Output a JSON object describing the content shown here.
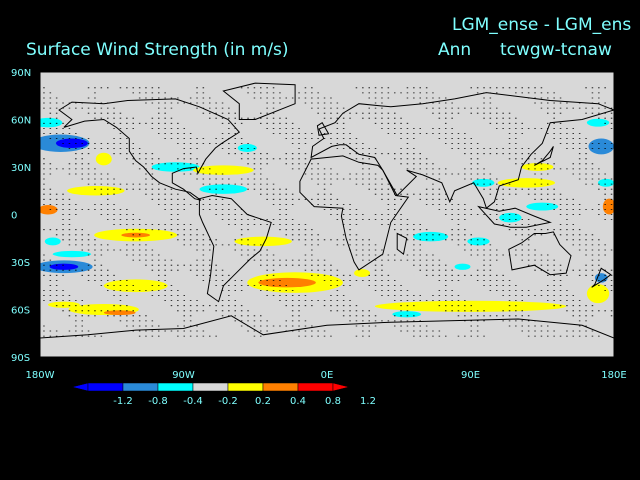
{
  "header": {
    "title": "Surface Wind Strength (in m/s)",
    "experiment": "LGM_ense - LGM_ens",
    "season": "Ann",
    "variable": "tcwgw-tcnaw"
  },
  "colors": {
    "background": "#000000",
    "text": "#7fffff",
    "ocean_land": "#d8d8d8",
    "coast": "#000000"
  },
  "chart_data": {
    "type": "heatmap",
    "title": "Surface Wind Strength (in m/s)",
    "xlabel": "",
    "ylabel": "",
    "xlim": [
      -180,
      180
    ],
    "ylim": [
      -90,
      90
    ],
    "x_ticks": [
      {
        "value": -180,
        "label": "180W"
      },
      {
        "value": -90,
        "label": "90W"
      },
      {
        "value": 0,
        "label": "0E"
      },
      {
        "value": 90,
        "label": "90E"
      },
      {
        "value": 180,
        "label": "180E"
      }
    ],
    "y_ticks": [
      {
        "value": 90,
        "label": "90N"
      },
      {
        "value": 60,
        "label": "60N"
      },
      {
        "value": 30,
        "label": "30N"
      },
      {
        "value": 0,
        "label": "0"
      },
      {
        "value": -30,
        "label": "30S"
      },
      {
        "value": -60,
        "label": "60S"
      },
      {
        "value": -90,
        "label": "90S"
      }
    ],
    "colorbar": {
      "levels": [
        "-1.2",
        "-0.8",
        "-0.4",
        "-0.2",
        "0.2",
        "0.4",
        "0.8",
        "1.2"
      ],
      "colors": [
        "#0000ff",
        "#0000ff",
        "#2a8ad8",
        "#00ffff",
        "#d8d8d8",
        "#ffff00",
        "#ff8000",
        "#ff0000",
        "#ff0000"
      ]
    },
    "anomaly_regions": [
      {
        "lon": -167,
        "lat": 45,
        "w": 36,
        "h": 11,
        "color": "#2a8ad8"
      },
      {
        "lon": -160,
        "lat": 45,
        "w": 20,
        "h": 6,
        "color": "#0000ff"
      },
      {
        "lon": -175,
        "lat": 58,
        "w": 18,
        "h": 6,
        "color": "#00ffff"
      },
      {
        "lon": -140,
        "lat": 35,
        "w": 10,
        "h": 8,
        "color": "#ffff00"
      },
      {
        "lon": -95,
        "lat": 30,
        "w": 30,
        "h": 6,
        "color": "#00ffff"
      },
      {
        "lon": -65,
        "lat": 28,
        "w": 38,
        "h": 6,
        "color": "#ffff00"
      },
      {
        "lon": -50,
        "lat": 42,
        "w": 12,
        "h": 5,
        "color": "#00ffff"
      },
      {
        "lon": -145,
        "lat": 15,
        "w": 36,
        "h": 6,
        "color": "#ffff00"
      },
      {
        "lon": -65,
        "lat": 16,
        "w": 30,
        "h": 6,
        "color": "#00ffff"
      },
      {
        "lon": -175,
        "lat": 3,
        "w": 12,
        "h": 6,
        "color": "#ff8000"
      },
      {
        "lon": -172,
        "lat": -17,
        "w": 10,
        "h": 5,
        "color": "#00ffff"
      },
      {
        "lon": -120,
        "lat": -13,
        "w": 52,
        "h": 8,
        "color": "#ffff00"
      },
      {
        "lon": -120,
        "lat": -13,
        "w": 18,
        "h": 3,
        "color": "#ff8000"
      },
      {
        "lon": -165,
        "lat": -33,
        "w": 36,
        "h": 8,
        "color": "#2a8ad8"
      },
      {
        "lon": -165,
        "lat": -33,
        "w": 18,
        "h": 4,
        "color": "#0000ff"
      },
      {
        "lon": -160,
        "lat": -25,
        "w": 24,
        "h": 4,
        "color": "#00ffff"
      },
      {
        "lon": -120,
        "lat": -45,
        "w": 40,
        "h": 8,
        "color": "#ffff00"
      },
      {
        "lon": -140,
        "lat": -60,
        "w": 44,
        "h": 7,
        "color": "#ffff00"
      },
      {
        "lon": -130,
        "lat": -62,
        "w": 20,
        "h": 3,
        "color": "#ff8000"
      },
      {
        "lon": -165,
        "lat": -57,
        "w": 20,
        "h": 4,
        "color": "#ffff00"
      },
      {
        "lon": -40,
        "lat": -17,
        "w": 36,
        "h": 6,
        "color": "#ffff00"
      },
      {
        "lon": -20,
        "lat": -43,
        "w": 60,
        "h": 13,
        "color": "#ffff00"
      },
      {
        "lon": -25,
        "lat": -43,
        "w": 36,
        "h": 6,
        "color": "#ff8000"
      },
      {
        "lon": 22,
        "lat": -37,
        "w": 10,
        "h": 5,
        "color": "#ffff00"
      },
      {
        "lon": 50,
        "lat": -63,
        "w": 18,
        "h": 4,
        "color": "#00ffff"
      },
      {
        "lon": 90,
        "lat": -58,
        "w": 120,
        "h": 7,
        "color": "#ffff00"
      },
      {
        "lon": 170,
        "lat": -50,
        "w": 14,
        "h": 12,
        "color": "#ffff00"
      },
      {
        "lon": 172,
        "lat": -40,
        "w": 8,
        "h": 6,
        "color": "#2a8ad8"
      },
      {
        "lon": 65,
        "lat": -14,
        "w": 22,
        "h": 6,
        "color": "#00ffff"
      },
      {
        "lon": 95,
        "lat": -17,
        "w": 14,
        "h": 5,
        "color": "#00ffff"
      },
      {
        "lon": 85,
        "lat": -33,
        "w": 10,
        "h": 4,
        "color": "#00ffff"
      },
      {
        "lon": 125,
        "lat": 20,
        "w": 36,
        "h": 6,
        "color": "#ffff00"
      },
      {
        "lon": 132,
        "lat": 30,
        "w": 20,
        "h": 5,
        "color": "#ffff00"
      },
      {
        "lon": 98,
        "lat": 20,
        "w": 14,
        "h": 5,
        "color": "#00ffff"
      },
      {
        "lon": 135,
        "lat": 5,
        "w": 20,
        "h": 5,
        "color": "#00ffff"
      },
      {
        "lon": 115,
        "lat": -2,
        "w": 14,
        "h": 6,
        "color": "#00ffff"
      },
      {
        "lon": 172,
        "lat": 43,
        "w": 16,
        "h": 10,
        "color": "#2a8ad8"
      },
      {
        "lon": 170,
        "lat": 58,
        "w": 14,
        "h": 5,
        "color": "#00ffff"
      },
      {
        "lon": 175,
        "lat": 20,
        "w": 10,
        "h": 5,
        "color": "#00ffff"
      },
      {
        "lon": 177,
        "lat": 5,
        "w": 8,
        "h": 10,
        "color": "#ff8000"
      }
    ]
  }
}
